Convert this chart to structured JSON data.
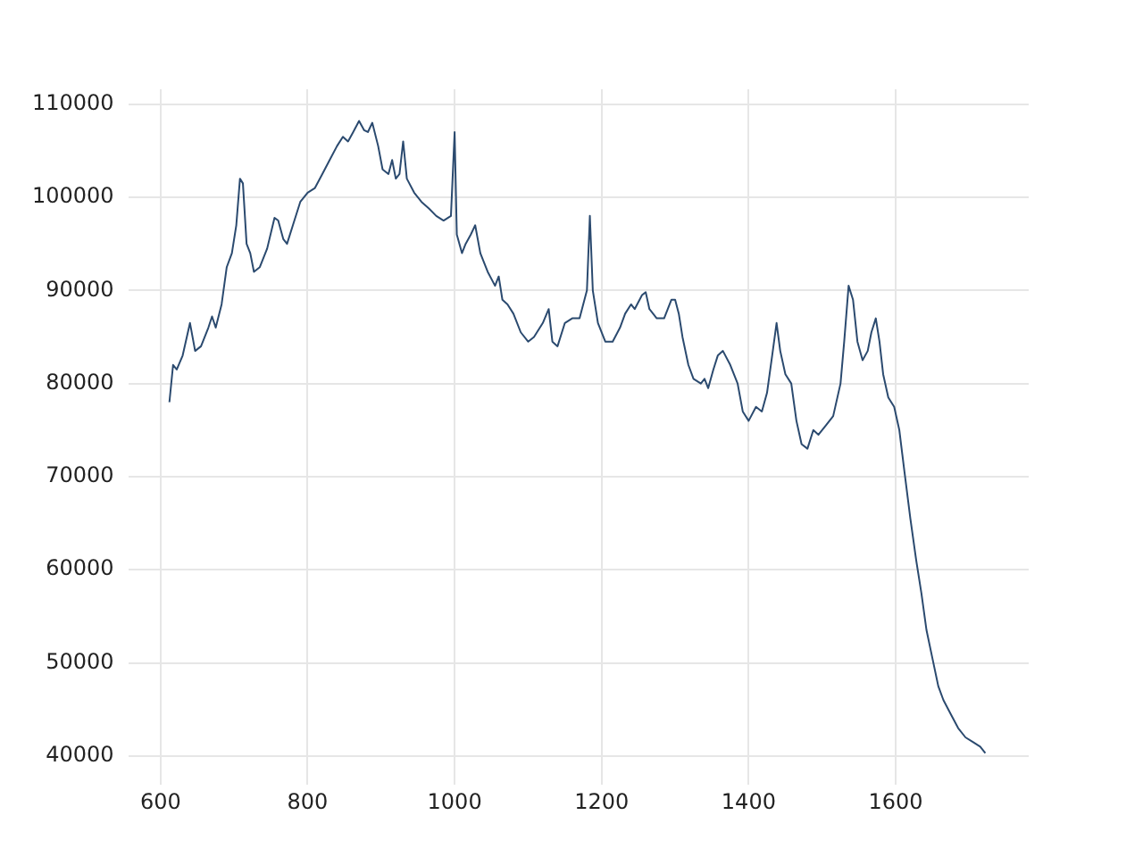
{
  "chart_data": {
    "type": "line",
    "x": [
      612,
      617,
      622,
      630,
      640,
      647,
      655,
      665,
      670,
      675,
      683,
      690,
      697,
      703,
      708,
      712,
      717,
      722,
      727,
      735,
      745,
      755,
      760,
      767,
      772,
      780,
      790,
      800,
      810,
      820,
      830,
      840,
      848,
      855,
      862,
      870,
      877,
      882,
      888,
      896,
      902,
      910,
      915,
      920,
      925,
      930,
      935,
      945,
      955,
      965,
      975,
      985,
      995,
      1000,
      1003,
      1010,
      1015,
      1022,
      1028,
      1035,
      1045,
      1055,
      1060,
      1065,
      1072,
      1080,
      1090,
      1100,
      1108,
      1120,
      1128,
      1133,
      1140,
      1150,
      1160,
      1170,
      1180,
      1184,
      1188,
      1195,
      1205,
      1215,
      1225,
      1232,
      1240,
      1245,
      1255,
      1260,
      1265,
      1275,
      1285,
      1295,
      1300,
      1305,
      1310,
      1318,
      1325,
      1335,
      1340,
      1345,
      1352,
      1358,
      1365,
      1375,
      1385,
      1392,
      1400,
      1410,
      1418,
      1425,
      1432,
      1438,
      1443,
      1450,
      1458,
      1465,
      1472,
      1480,
      1488,
      1495,
      1505,
      1515,
      1525,
      1530,
      1536,
      1542,
      1548,
      1555,
      1562,
      1567,
      1573,
      1578,
      1583,
      1590,
      1598,
      1605,
      1612,
      1620,
      1628,
      1635,
      1642,
      1650,
      1658,
      1665,
      1675,
      1685,
      1695,
      1705,
      1715,
      1722
    ],
    "series": [
      {
        "color": "#2b4a6f",
        "values": [
          78000,
          82000,
          81500,
          83000,
          86500,
          83500,
          84000,
          86000,
          87200,
          86000,
          88500,
          92500,
          94000,
          97000,
          102000,
          101500,
          95000,
          94000,
          92000,
          92500,
          94500,
          97800,
          97500,
          95500,
          95000,
          97000,
          99500,
          100500,
          101000,
          102500,
          104000,
          105500,
          106500,
          106000,
          107000,
          108200,
          107200,
          107000,
          108000,
          105500,
          103000,
          102500,
          104000,
          102000,
          102500,
          106000,
          102000,
          100500,
          99500,
          98800,
          98000,
          97500,
          98000,
          107000,
          96000,
          94000,
          95000,
          96000,
          97000,
          94000,
          92000,
          90500,
          91500,
          89000,
          88500,
          87500,
          85500,
          84500,
          85000,
          86500,
          88000,
          84500,
          84000,
          86500,
          87000,
          87000,
          90000,
          98000,
          90000,
          86500,
          84500,
          84500,
          86000,
          87500,
          88500,
          88000,
          89500,
          89800,
          88000,
          87000,
          87000,
          89000,
          89000,
          87500,
          85000,
          82000,
          80500,
          80000,
          80500,
          79500,
          81500,
          83000,
          83500,
          82000,
          80000,
          77000,
          76000,
          77500,
          77000,
          79000,
          83000,
          86500,
          83500,
          81000,
          80000,
          76000,
          73500,
          73000,
          75000,
          74500,
          75500,
          76500,
          80000,
          84500,
          90500,
          89000,
          84500,
          82500,
          83500,
          85500,
          87000,
          84500,
          81000,
          78500,
          77500,
          75000,
          70500,
          65500,
          61000,
          57500,
          53500,
          50500,
          47500,
          46000,
          44500,
          43000,
          42000,
          41500,
          41000,
          40300
        ]
      }
    ],
    "xlim": [
      556,
      1781
    ],
    "ylim": [
      36900,
      111600
    ],
    "xticks": [
      600,
      800,
      1000,
      1200,
      1400,
      1600
    ],
    "yticks": [
      40000,
      50000,
      60000,
      70000,
      80000,
      90000,
      100000,
      110000
    ],
    "grid": true,
    "marker": "none",
    "line_style": "solid"
  }
}
